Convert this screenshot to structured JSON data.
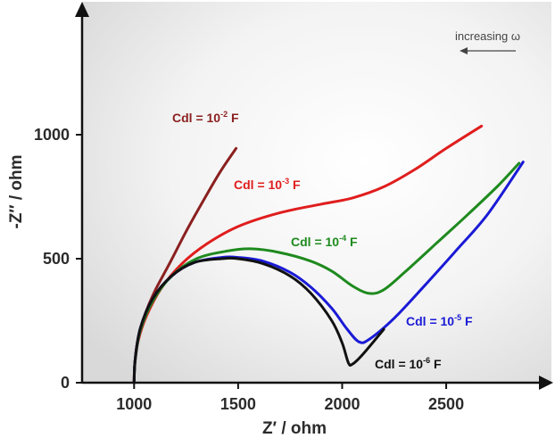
{
  "chart_data": {
    "type": "line",
    "xlabel": "Z′ / ohm",
    "ylabel": "-Z′′ / ohm",
    "xlim": [
      750,
      2950
    ],
    "ylim": [
      0,
      1500
    ],
    "xticks": [
      1000,
      1500,
      2000,
      2500
    ],
    "yticks": [
      0,
      500,
      1000
    ],
    "annotation": "increasing ω",
    "legend": "inline labels next to each curve",
    "grid": false,
    "series": [
      {
        "name": "Cdl = 10-2 F",
        "label_base": "Cdl = 10",
        "label_exp": "-2",
        "label_unit": " F",
        "color": "#8b1f1f",
        "points": [
          [
            1000,
            0
          ],
          [
            1003,
            70
          ],
          [
            1015,
            160
          ],
          [
            1050,
            270
          ],
          [
            1100,
            370
          ],
          [
            1170,
            480
          ],
          [
            1250,
            610
          ],
          [
            1330,
            730
          ],
          [
            1410,
            845
          ],
          [
            1490,
            945
          ]
        ]
      },
      {
        "name": "Cdl = 10-3 F",
        "label_base": "Cdl = 10",
        "label_exp": "-3",
        "label_unit": " F",
        "color": "#e01d1d",
        "points": [
          [
            1000,
            0
          ],
          [
            1003,
            70
          ],
          [
            1020,
            170
          ],
          [
            1060,
            270
          ],
          [
            1130,
            380
          ],
          [
            1230,
            480
          ],
          [
            1350,
            560
          ],
          [
            1500,
            630
          ],
          [
            1700,
            685
          ],
          [
            1900,
            720
          ],
          [
            2050,
            745
          ],
          [
            2200,
            790
          ],
          [
            2350,
            860
          ],
          [
            2500,
            945
          ],
          [
            2670,
            1035
          ]
        ]
      },
      {
        "name": "Cdl = 10-4 F",
        "label_base": "Cdl = 10",
        "label_exp": "-4",
        "label_unit": " F",
        "color": "#1e8a1e",
        "points": [
          [
            1000,
            0
          ],
          [
            1005,
            90
          ],
          [
            1030,
            210
          ],
          [
            1090,
            330
          ],
          [
            1180,
            430
          ],
          [
            1300,
            500
          ],
          [
            1440,
            530
          ],
          [
            1560,
            540
          ],
          [
            1700,
            525
          ],
          [
            1850,
            490
          ],
          [
            1950,
            450
          ],
          [
            2050,
            390
          ],
          [
            2130,
            360
          ],
          [
            2200,
            375
          ],
          [
            2300,
            445
          ],
          [
            2450,
            560
          ],
          [
            2600,
            675
          ],
          [
            2750,
            795
          ],
          [
            2850,
            885
          ]
        ]
      },
      {
        "name": "Cdl = 10-5 F",
        "label_base": "Cdl = 10",
        "label_exp": "-5",
        "label_unit": " F",
        "color": "#1a1ad6",
        "points": [
          [
            1000,
            0
          ],
          [
            1005,
            95
          ],
          [
            1030,
            220
          ],
          [
            1090,
            340
          ],
          [
            1180,
            430
          ],
          [
            1290,
            485
          ],
          [
            1420,
            505
          ],
          [
            1500,
            505
          ],
          [
            1620,
            490
          ],
          [
            1750,
            445
          ],
          [
            1850,
            385
          ],
          [
            1950,
            300
          ],
          [
            2020,
            220
          ],
          [
            2080,
            165
          ],
          [
            2130,
            175
          ],
          [
            2250,
            260
          ],
          [
            2400,
            395
          ],
          [
            2550,
            535
          ],
          [
            2700,
            680
          ],
          [
            2870,
            890
          ]
        ]
      },
      {
        "name": "Cdl = 10-6 F",
        "label_base": "Cdl = 10",
        "label_exp": "-6",
        "label_unit": " F",
        "color": "#111111",
        "points": [
          [
            1000,
            0
          ],
          [
            1005,
            95
          ],
          [
            1030,
            220
          ],
          [
            1090,
            340
          ],
          [
            1180,
            430
          ],
          [
            1290,
            485
          ],
          [
            1420,
            500
          ],
          [
            1500,
            500
          ],
          [
            1620,
            480
          ],
          [
            1750,
            430
          ],
          [
            1850,
            360
          ],
          [
            1950,
            250
          ],
          [
            2000,
            160
          ],
          [
            2030,
            80
          ],
          [
            2050,
            75
          ],
          [
            2100,
            115
          ],
          [
            2200,
            215
          ]
        ]
      }
    ]
  }
}
